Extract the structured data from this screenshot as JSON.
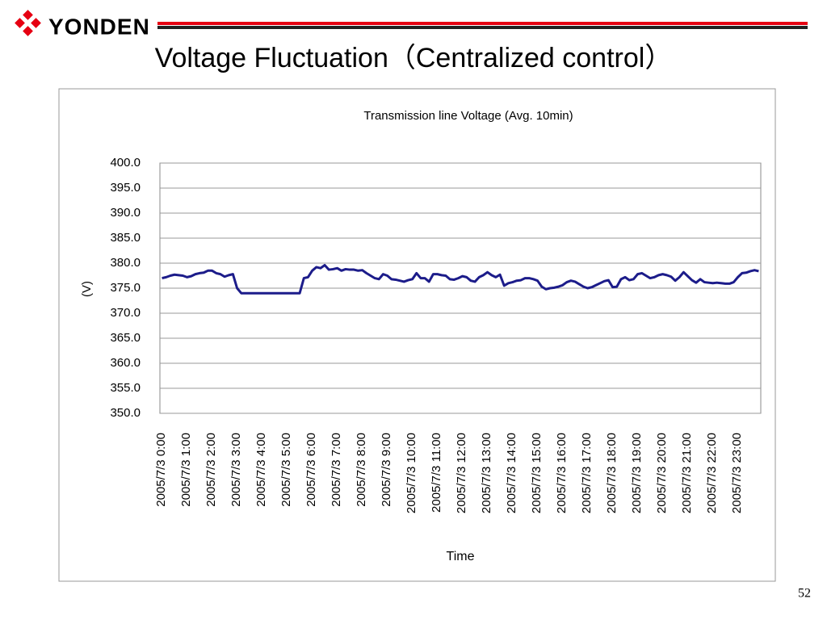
{
  "header": {
    "logo": "YONDEN",
    "title": "Voltage Fluctuation（Centralized control）"
  },
  "page_number": "52",
  "chart_data": {
    "type": "line",
    "title": "Transmission line Voltage (Avg. 10min)",
    "y_label": "(V)",
    "x_label": "Time",
    "categories": [
      "2005/7/3 0:00",
      null,
      null,
      null,
      null,
      null,
      "2005/7/3 1:00",
      null,
      null,
      null,
      null,
      null,
      "2005/7/3 2:00",
      null,
      null,
      null,
      null,
      null,
      "2005/7/3 3:00",
      null,
      null,
      null,
      null,
      null,
      "2005/7/3 4:00",
      null,
      null,
      null,
      null,
      null,
      "2005/7/3 5:00",
      null,
      null,
      null,
      null,
      null,
      "2005/7/3 6:00",
      null,
      null,
      null,
      null,
      null,
      "2005/7/3 7:00",
      null,
      null,
      null,
      null,
      null,
      "2005/7/3 8:00",
      null,
      null,
      null,
      null,
      null,
      "2005/7/3 9:00",
      null,
      null,
      null,
      null,
      null,
      "2005/7/3 10:00",
      null,
      null,
      null,
      null,
      null,
      "2005/7/3 11:00",
      null,
      null,
      null,
      null,
      null,
      "2005/7/3 12:00",
      null,
      null,
      null,
      null,
      null,
      "2005/7/3 13:00",
      null,
      null,
      null,
      null,
      null,
      "2005/7/3 14:00",
      null,
      null,
      null,
      null,
      null,
      "2005/7/3 15:00",
      null,
      null,
      null,
      null,
      null,
      "2005/7/3 16:00",
      null,
      null,
      null,
      null,
      null,
      "2005/7/3 17:00",
      null,
      null,
      null,
      null,
      null,
      "2005/7/3 18:00",
      null,
      null,
      null,
      null,
      null,
      "2005/7/3 19:00",
      null,
      null,
      null,
      null,
      null,
      "2005/7/3 20:00",
      null,
      null,
      null,
      null,
      null,
      "2005/7/3 21:00",
      null,
      null,
      null,
      null,
      null,
      "2005/7/3 22:00",
      null,
      null,
      null,
      null,
      null,
      "2005/7/3 23:00",
      null,
      null,
      null,
      null,
      null
    ],
    "series": [
      {
        "name": "Voltage",
        "color": "#1c1c8a",
        "values": [
          377.0,
          377.2,
          377.5,
          377.7,
          377.6,
          377.5,
          377.2,
          377.4,
          377.8,
          378.0,
          378.1,
          378.5,
          378.5,
          378.0,
          377.8,
          377.3,
          377.6,
          377.8,
          375.0,
          374.0,
          374.0,
          374.0,
          374.0,
          374.0,
          374.0,
          374.0,
          374.0,
          374.0,
          374.0,
          374.0,
          374.0,
          374.0,
          374.0,
          374.0,
          377.0,
          377.2,
          378.5,
          379.2,
          379.0,
          379.6,
          378.7,
          378.8,
          379.0,
          378.5,
          378.8,
          378.7,
          378.7,
          378.5,
          378.6,
          378.0,
          377.5,
          377.0,
          376.8,
          377.8,
          377.5,
          376.8,
          376.7,
          376.5,
          376.3,
          376.6,
          376.8,
          378.0,
          377.0,
          377.0,
          376.3,
          377.8,
          377.8,
          377.6,
          377.5,
          376.8,
          376.7,
          377.0,
          377.4,
          377.2,
          376.5,
          376.3,
          377.2,
          377.6,
          378.2,
          377.6,
          377.2,
          377.7,
          375.5,
          376.0,
          376.2,
          376.5,
          376.6,
          377.0,
          377.0,
          376.8,
          376.5,
          375.3,
          374.8,
          375.0,
          375.1,
          375.3,
          375.6,
          376.2,
          376.5,
          376.3,
          375.8,
          375.3,
          375.0,
          375.2,
          375.6,
          376.0,
          376.4,
          376.6,
          375.2,
          375.3,
          376.8,
          377.2,
          376.6,
          376.8,
          377.8,
          378.0,
          377.5,
          377.0,
          377.2,
          377.6,
          377.8,
          377.6,
          377.3,
          376.5,
          377.2,
          378.2,
          377.4,
          376.6,
          376.1,
          376.8,
          376.2,
          376.1,
          376.0,
          376.1,
          376.0,
          375.9,
          375.9,
          376.2,
          377.2,
          378.0,
          378.1,
          378.4,
          378.6,
          378.4
        ]
      }
    ],
    "ylim": [
      350,
      400
    ],
    "yticks": [
      {
        "value": 350,
        "label": "350.0"
      },
      {
        "value": 355,
        "label": "355.0"
      },
      {
        "value": 360,
        "label": "360.0"
      },
      {
        "value": 365,
        "label": "365.0"
      },
      {
        "value": 370,
        "label": "370.0"
      },
      {
        "value": 375,
        "label": "375.0"
      },
      {
        "value": 380,
        "label": "380.0"
      },
      {
        "value": 385,
        "label": "385.0"
      },
      {
        "value": 390,
        "label": "390.0"
      },
      {
        "value": 395,
        "label": "395.0"
      },
      {
        "value": 400,
        "label": "400.0"
      }
    ],
    "grid": true
  }
}
